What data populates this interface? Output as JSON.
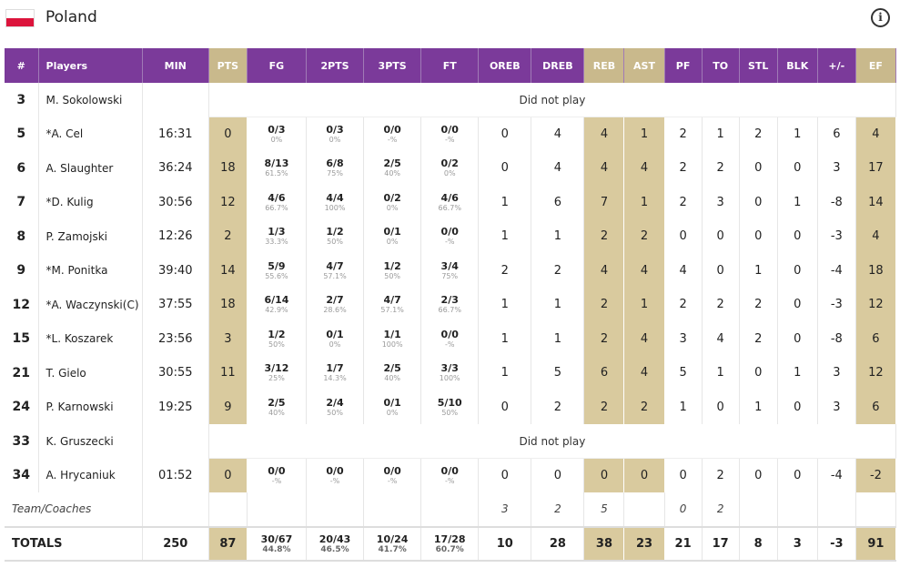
{
  "team": {
    "name": "Poland",
    "flag_colors": [
      "#ffffff",
      "#dc143c"
    ],
    "info_icon": "i"
  },
  "columns": [
    "#",
    "Players",
    "MIN",
    "PTS",
    "FG",
    "2PTS",
    "3PTS",
    "FT",
    "OREB",
    "DREB",
    "REB",
    "AST",
    "PF",
    "TO",
    "STL",
    "BLK",
    "+/-",
    "EF"
  ],
  "highlight_color": "#d9ca9e",
  "header_color": "#7b3a9a",
  "dnp_text": "Did not play",
  "players": [
    {
      "num": "3",
      "name": "M. Sokolowski",
      "dnp": true
    },
    {
      "num": "5",
      "name": "*A. Cel",
      "min": "16:31",
      "pts": "0",
      "fg": "0/3",
      "fg_pct": "0%",
      "p2": "0/3",
      "p2_pct": "0%",
      "p3": "0/0",
      "p3_pct": "-%",
      "ft": "0/0",
      "ft_pct": "-%",
      "oreb": "0",
      "dreb": "4",
      "reb": "4",
      "ast": "1",
      "pf": "2",
      "to": "1",
      "stl": "2",
      "blk": "1",
      "pm": "6",
      "ef": "4"
    },
    {
      "num": "6",
      "name": "A. Slaughter",
      "min": "36:24",
      "pts": "18",
      "fg": "8/13",
      "fg_pct": "61.5%",
      "p2": "6/8",
      "p2_pct": "75%",
      "p3": "2/5",
      "p3_pct": "40%",
      "ft": "0/2",
      "ft_pct": "0%",
      "oreb": "0",
      "dreb": "4",
      "reb": "4",
      "ast": "4",
      "pf": "2",
      "to": "2",
      "stl": "0",
      "blk": "0",
      "pm": "3",
      "ef": "17"
    },
    {
      "num": "7",
      "name": "*D. Kulig",
      "min": "30:56",
      "pts": "12",
      "fg": "4/6",
      "fg_pct": "66.7%",
      "p2": "4/4",
      "p2_pct": "100%",
      "p3": "0/2",
      "p3_pct": "0%",
      "ft": "4/6",
      "ft_pct": "66.7%",
      "oreb": "1",
      "dreb": "6",
      "reb": "7",
      "ast": "1",
      "pf": "2",
      "to": "3",
      "stl": "0",
      "blk": "1",
      "pm": "-8",
      "ef": "14"
    },
    {
      "num": "8",
      "name": "P. Zamojski",
      "min": "12:26",
      "pts": "2",
      "fg": "1/3",
      "fg_pct": "33.3%",
      "p2": "1/2",
      "p2_pct": "50%",
      "p3": "0/1",
      "p3_pct": "0%",
      "ft": "0/0",
      "ft_pct": "-%",
      "oreb": "1",
      "dreb": "1",
      "reb": "2",
      "ast": "2",
      "pf": "0",
      "to": "0",
      "stl": "0",
      "blk": "0",
      "pm": "-3",
      "ef": "4"
    },
    {
      "num": "9",
      "name": "*M. Ponitka",
      "min": "39:40",
      "pts": "14",
      "fg": "5/9",
      "fg_pct": "55.6%",
      "p2": "4/7",
      "p2_pct": "57.1%",
      "p3": "1/2",
      "p3_pct": "50%",
      "ft": "3/4",
      "ft_pct": "75%",
      "oreb": "2",
      "dreb": "2",
      "reb": "4",
      "ast": "4",
      "pf": "4",
      "to": "0",
      "stl": "1",
      "blk": "0",
      "pm": "-4",
      "ef": "18"
    },
    {
      "num": "12",
      "name": "*A. Waczynski(C)",
      "min": "37:55",
      "pts": "18",
      "fg": "6/14",
      "fg_pct": "42.9%",
      "p2": "2/7",
      "p2_pct": "28.6%",
      "p3": "4/7",
      "p3_pct": "57.1%",
      "ft": "2/3",
      "ft_pct": "66.7%",
      "oreb": "1",
      "dreb": "1",
      "reb": "2",
      "ast": "1",
      "pf": "2",
      "to": "2",
      "stl": "2",
      "blk": "0",
      "pm": "-3",
      "ef": "12"
    },
    {
      "num": "15",
      "name": "*L. Koszarek",
      "min": "23:56",
      "pts": "3",
      "fg": "1/2",
      "fg_pct": "50%",
      "p2": "0/1",
      "p2_pct": "0%",
      "p3": "1/1",
      "p3_pct": "100%",
      "ft": "0/0",
      "ft_pct": "-%",
      "oreb": "1",
      "dreb": "1",
      "reb": "2",
      "ast": "4",
      "pf": "3",
      "to": "4",
      "stl": "2",
      "blk": "0",
      "pm": "-8",
      "ef": "6"
    },
    {
      "num": "21",
      "name": "T. Gielo",
      "min": "30:55",
      "pts": "11",
      "fg": "3/12",
      "fg_pct": "25%",
      "p2": "1/7",
      "p2_pct": "14.3%",
      "p3": "2/5",
      "p3_pct": "40%",
      "ft": "3/3",
      "ft_pct": "100%",
      "oreb": "1",
      "dreb": "5",
      "reb": "6",
      "ast": "4",
      "pf": "5",
      "to": "1",
      "stl": "0",
      "blk": "1",
      "pm": "3",
      "ef": "12"
    },
    {
      "num": "24",
      "name": "P. Karnowski",
      "min": "19:25",
      "pts": "9",
      "fg": "2/5",
      "fg_pct": "40%",
      "p2": "2/4",
      "p2_pct": "50%",
      "p3": "0/1",
      "p3_pct": "0%",
      "ft": "5/10",
      "ft_pct": "50%",
      "oreb": "0",
      "dreb": "2",
      "reb": "2",
      "ast": "2",
      "pf": "1",
      "to": "0",
      "stl": "1",
      "blk": "0",
      "pm": "3",
      "ef": "6"
    },
    {
      "num": "33",
      "name": "K. Gruszecki",
      "dnp": true
    },
    {
      "num": "34",
      "name": "A. Hrycaniuk",
      "min": "01:52",
      "pts": "0",
      "fg": "0/0",
      "fg_pct": "-%",
      "p2": "0/0",
      "p2_pct": "-%",
      "p3": "0/0",
      "p3_pct": "-%",
      "ft": "0/0",
      "ft_pct": "-%",
      "oreb": "0",
      "dreb": "0",
      "reb": "0",
      "ast": "0",
      "pf": "0",
      "to": "2",
      "stl": "0",
      "blk": "0",
      "pm": "-4",
      "ef": "-2"
    }
  ],
  "team_coaches": {
    "label": "Team/Coaches",
    "oreb": "3",
    "dreb": "2",
    "reb": "5",
    "pf": "0",
    "to": "2"
  },
  "totals": {
    "label": "TOTALS",
    "min": "250",
    "pts": "87",
    "fg": "30/67",
    "fg_pct": "44.8%",
    "p2": "20/43",
    "p2_pct": "46.5%",
    "p3": "10/24",
    "p3_pct": "41.7%",
    "ft": "17/28",
    "ft_pct": "60.7%",
    "oreb": "10",
    "dreb": "28",
    "reb": "38",
    "ast": "23",
    "pf": "21",
    "to": "17",
    "stl": "8",
    "blk": "3",
    "pm": "-3",
    "ef": "91"
  }
}
